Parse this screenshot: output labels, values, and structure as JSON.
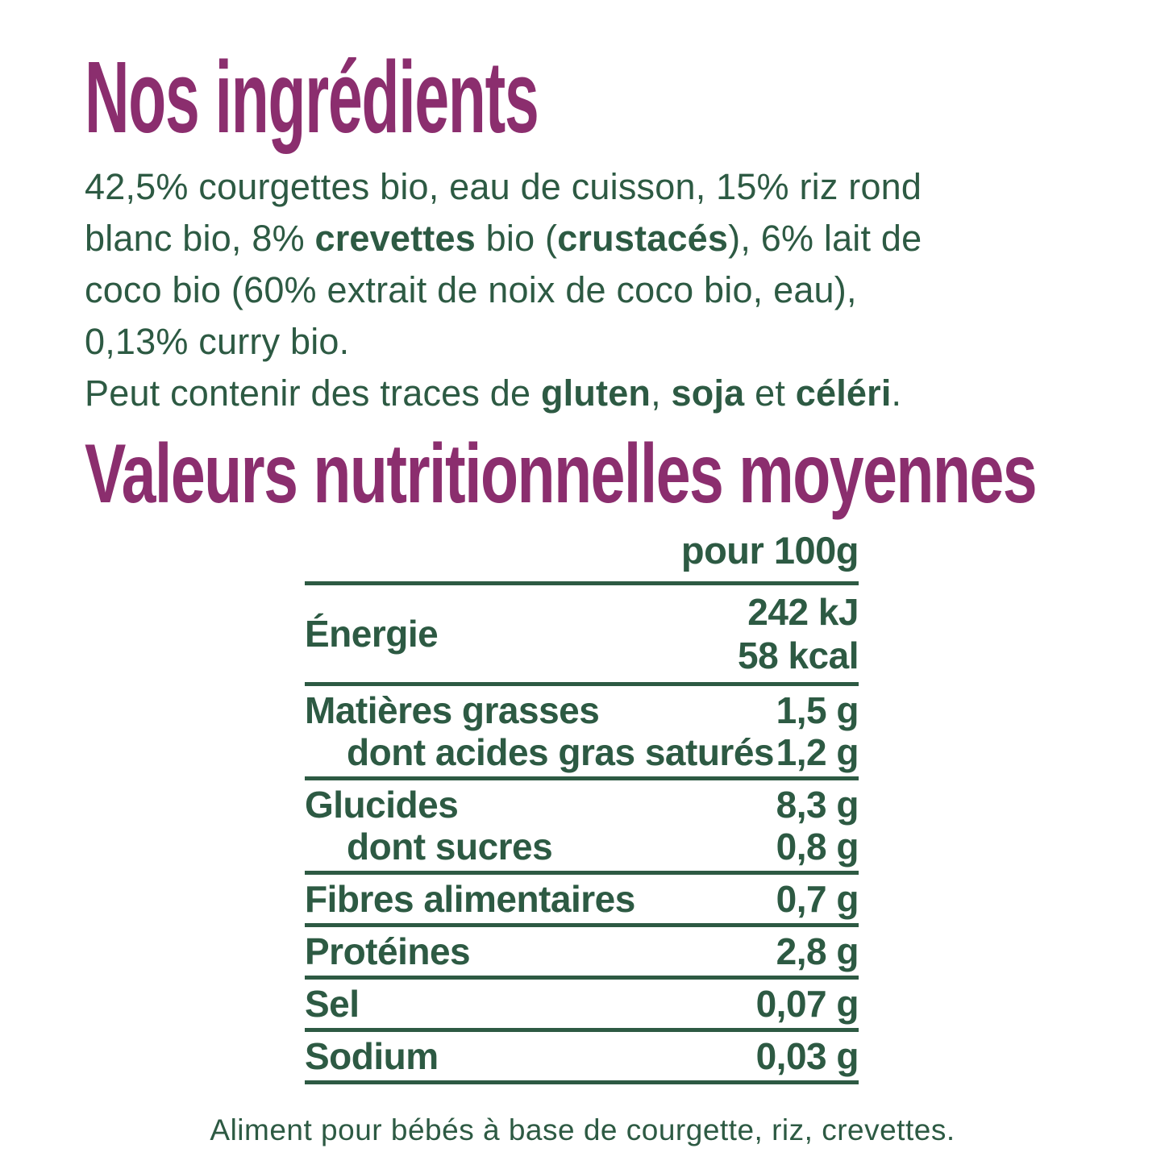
{
  "colors": {
    "title_purple": "#8b2e6e",
    "text_green": "#2d5a43",
    "background": "#ffffff"
  },
  "ingredients": {
    "title": "Nos ingrédients",
    "line1": "42,5% courgettes bio, eau de cuisson, 15% riz rond",
    "line2": {
      "s0": "blanc bio, 8% ",
      "s1": "crevettes",
      "s2": " bio (",
      "s3": "crustacés",
      "s4": "), 6% lait de"
    },
    "line3": "coco bio (60% extrait de noix de coco bio, eau),",
    "line4": "0,13% curry bio.",
    "traces": {
      "s0": "Peut contenir des traces de ",
      "s1": "gluten",
      "s2": ", ",
      "s3": "soja",
      "s4": " et ",
      "s5": "céléri",
      "s6": "."
    }
  },
  "nutrition": {
    "title": "Valeurs nutritionnelles moyennes",
    "column_header": "pour 100g",
    "energy": {
      "label": "Énergie",
      "kj": "242 kJ",
      "kcal": "58 kcal"
    },
    "rows": [
      {
        "label": "Matières grasses",
        "value": "1,5 g",
        "indent": false
      },
      {
        "label": "dont acides gras saturés",
        "value": "1,2 g",
        "indent": true
      },
      {
        "label": "Glucides",
        "value": "8,3 g",
        "indent": false
      },
      {
        "label": "dont sucres",
        "value": "0,8 g",
        "indent": true
      },
      {
        "label": "Fibres alimentaires",
        "value": "0,7 g",
        "indent": false
      },
      {
        "label": "Protéines",
        "value": "2,8 g",
        "indent": false
      },
      {
        "label": "Sel",
        "value": "0,07 g",
        "indent": false
      },
      {
        "label": "Sodium",
        "value": "0,03 g",
        "indent": false
      }
    ]
  },
  "footer": "Aliment pour bébés à base de courgette, riz, crevettes."
}
